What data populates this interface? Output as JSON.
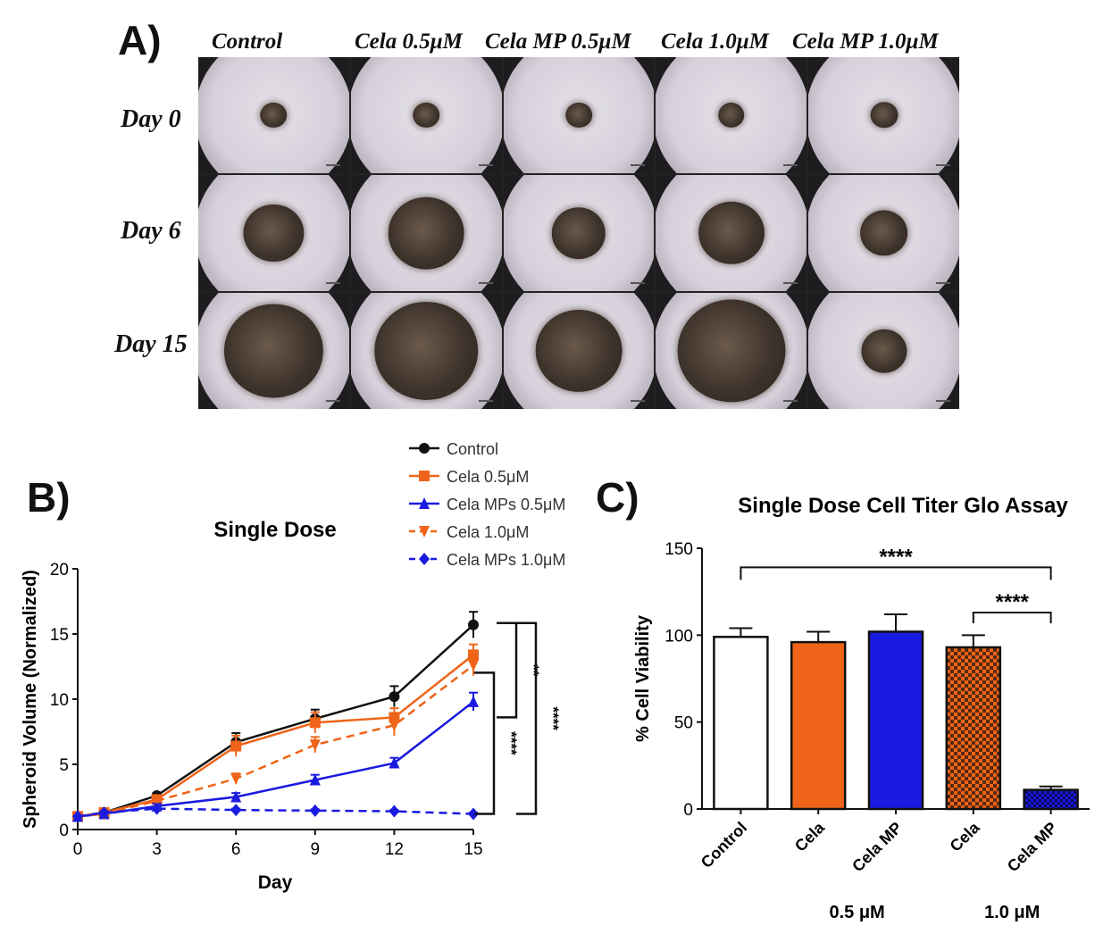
{
  "panelA": {
    "letter": "A)",
    "columns": [
      "Control",
      "Cela 0.5μM",
      "Cela MP 0.5μM",
      "Cela 1.0μM",
      "Cela MP 1.0μM"
    ],
    "rows": [
      "Day 0",
      "Day 6",
      "Day 15"
    ],
    "spheroid_relative_size": [
      [
        0.22,
        0.22,
        0.22,
        0.22,
        0.23
      ],
      [
        0.5,
        0.63,
        0.45,
        0.55,
        0.4
      ],
      [
        0.82,
        0.86,
        0.72,
        0.9,
        0.38
      ]
    ]
  },
  "panelB": {
    "letter": "B)"
  },
  "panelC": {
    "letter": "C)",
    "group_labels": [
      "0.5 μM",
      "1.0 μM"
    ]
  },
  "colors": {
    "control": "#111111",
    "cela": "#ef6418",
    "mp": "#1a1ae0"
  },
  "chart_data": [
    {
      "type": "line",
      "title": "Single Dose",
      "xlabel": "Day",
      "ylabel": "Spheroid Volume (Normalized)",
      "x": [
        0,
        1,
        3,
        6,
        9,
        12,
        15
      ],
      "xticks": [
        "0",
        "3",
        "6",
        "9",
        "12",
        "15"
      ],
      "xlim": [
        0,
        15
      ],
      "ylim": [
        0,
        20
      ],
      "yticks": [
        "0",
        "5",
        "10",
        "15",
        "20"
      ],
      "series": [
        {
          "name": "Control",
          "color": "#111111",
          "dash": false,
          "marker": "circle",
          "values": [
            1.0,
            1.3,
            2.6,
            6.7,
            8.5,
            10.2,
            15.7
          ],
          "errors": [
            0.1,
            0.2,
            0.2,
            0.7,
            0.7,
            0.8,
            1.0
          ]
        },
        {
          "name": "Cela 0.5μM",
          "color": "#ef6418",
          "dash": false,
          "marker": "square",
          "values": [
            1.0,
            1.3,
            2.3,
            6.4,
            8.2,
            8.6,
            13.4
          ],
          "errors": [
            0.1,
            0.2,
            0.2,
            0.8,
            0.8,
            0.7,
            0.8
          ]
        },
        {
          "name": "Cela MPs 0.5μM",
          "color": "#1a1ae0",
          "dash": false,
          "marker": "triangle-up",
          "values": [
            1.0,
            1.2,
            1.8,
            2.5,
            3.8,
            5.1,
            9.8
          ],
          "errors": [
            0.1,
            0.1,
            0.2,
            0.3,
            0.4,
            0.4,
            0.7
          ]
        },
        {
          "name": "Cela 1.0μM",
          "color": "#ef6418",
          "dash": true,
          "marker": "triangle-down",
          "values": [
            1.0,
            1.2,
            2.2,
            3.9,
            6.5,
            8.0,
            12.6
          ],
          "errors": [
            0.1,
            0.2,
            0.2,
            0.4,
            0.6,
            0.8,
            0.8
          ]
        },
        {
          "name": "Cela MPs 1.0μM",
          "color": "#1a1ae0",
          "dash": true,
          "marker": "diamond",
          "values": [
            1.0,
            1.3,
            1.6,
            1.5,
            1.45,
            1.4,
            1.2
          ],
          "errors": [
            0.05,
            0.1,
            0.1,
            0.1,
            0.1,
            0.1,
            0.1
          ]
        }
      ],
      "significance": [
        "**",
        "****",
        "****"
      ]
    },
    {
      "type": "bar",
      "title": "Single Dose Cell Titer Glo Assay",
      "ylabel": "% Cell Viability",
      "categories": [
        "Control",
        "Cela",
        "Cela MP",
        "Cela",
        "Cela MP"
      ],
      "values": [
        99,
        96,
        102,
        93,
        11
      ],
      "errors": [
        5,
        6,
        10,
        7,
        2
      ],
      "fills": [
        "white",
        "orange",
        "blue",
        "orange-check",
        "blue-check"
      ],
      "ylim": [
        0,
        150
      ],
      "yticks": [
        "0",
        "50",
        "100",
        "150"
      ],
      "significance": [
        "****",
        "****"
      ]
    }
  ]
}
